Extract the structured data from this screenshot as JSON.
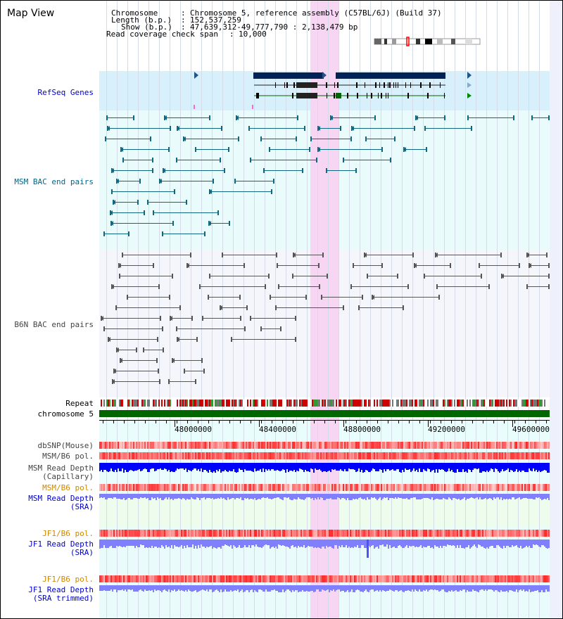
{
  "title": "Map View",
  "info": {
    "chromosome_key": "Chromosome",
    "chromosome_val": "Chromosome 5, reference assembly (C57BL/6J) (Build 37)",
    "length_key": "Length (b.p.)",
    "length_val": "152,537,259",
    "show_key": "Show (b.p.)",
    "show_val": "47,639,312-49,777,790 : 2,138,479 bp",
    "coverage_key": "Read coverage check span",
    "coverage_val": "10,000"
  },
  "ruler_labels": [
    "48000000",
    "48400000",
    "48800000",
    "49200000",
    "49600000"
  ],
  "tracks": {
    "refseq": {
      "label": "RefSeq Genes",
      "color": "#0000cc"
    },
    "msm_bac": {
      "label": "MSM BAC end pairs",
      "color": "#006688"
    },
    "b6n_bac": {
      "label": "B6N BAC end pairs",
      "color": "#444444"
    },
    "repeat": {
      "label": "Repeat",
      "color": "#000000"
    },
    "chromosome": {
      "label": "chromosome 5",
      "color": "#000000"
    },
    "dbsnp": {
      "label": "dbSNP(Mouse)",
      "color": "#444444"
    },
    "msm_b6_pol": {
      "label": "MSM/B6 pol.",
      "color": "#444444"
    },
    "msm_depth_cap": {
      "label1": "MSM Read Depth",
      "label2": "(Capillary)",
      "color": "#444444"
    },
    "msm_b6_pol2": {
      "label": "MSM/B6 pol.",
      "color": "#cc8800"
    },
    "msm_depth_sra": {
      "label1": "MSM Read Depth",
      "label2": "(SRA)",
      "color": "#0000cc"
    },
    "jf1_b6_pol": {
      "label": "JF1/B6 pol.",
      "color": "#cc8800"
    },
    "jf1_depth_sra": {
      "label1": "JF1 Read Depth",
      "label2": "(SRA)",
      "color": "#0000cc"
    },
    "jf1_b6_pol2": {
      "label": "JF1/B6 pol.",
      "color": "#cc8800"
    },
    "jf1_depth_trim": {
      "label1": "JF1 Read Depth",
      "label2": "(SRA trimmed)",
      "color": "#0000cc"
    }
  },
  "colors": {
    "highlight": "#f7d6f3",
    "refseq_bg": "#d8f0fb",
    "msm_bg": "#e9fbfb",
    "b6n_bg": "#f5f6fb",
    "gene_dark": "#002255",
    "chrom_green": "#006600",
    "depth_blue": "#0000ff",
    "depth_light": "#8080ff",
    "pol_red": "#ff4040"
  }
}
